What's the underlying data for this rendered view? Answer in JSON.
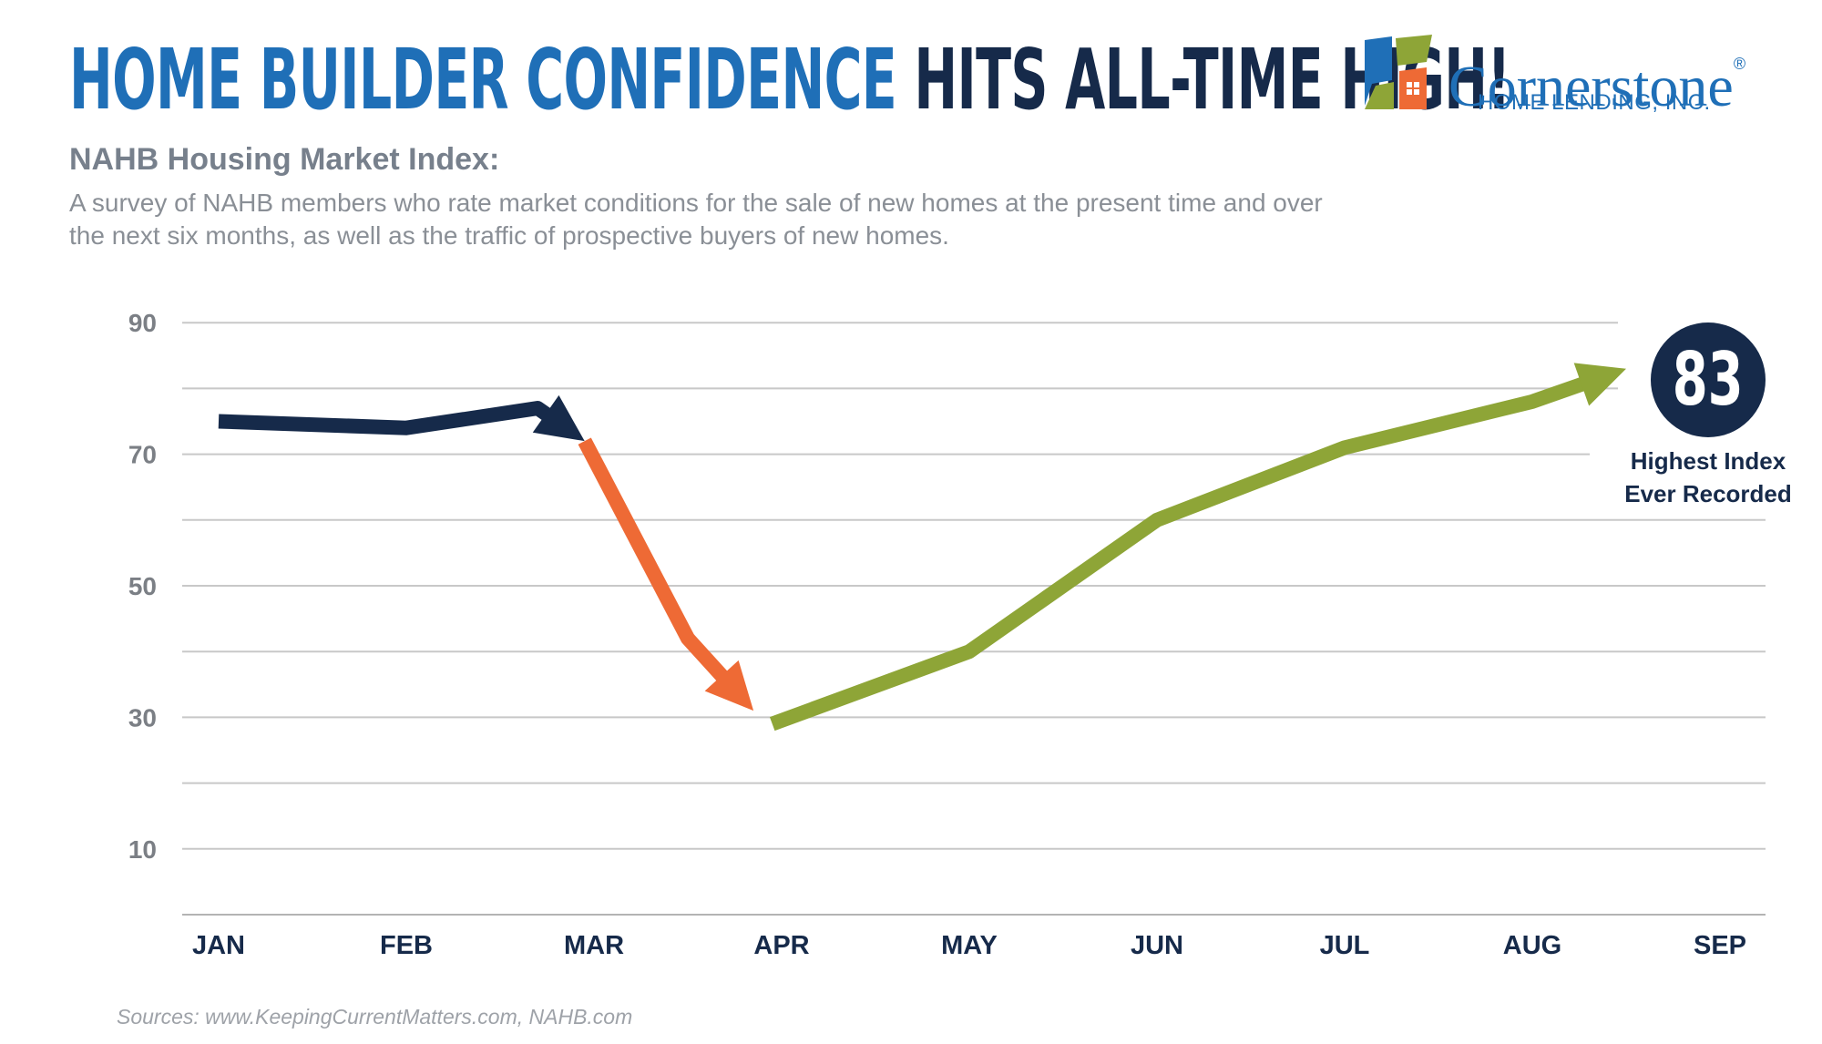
{
  "header": {
    "title_part1": "HOME BUILDER CONFIDENCE",
    "title_part2": "HITS ALL-TIME HIGH!",
    "subtitle": "NAHB Housing Market Index:",
    "description": "A survey of NAHB members who rate market conditions for the sale of new homes at the present time and over the next six months, as well as the traffic of prospective buyers of new homes."
  },
  "logo": {
    "name": "Cornerstone",
    "registered": "®",
    "tagline": "HOME LENDING, INC.",
    "icon": "house-window-logo-icon"
  },
  "callout": {
    "value": "83",
    "caption_line1": "Highest Index",
    "caption_line2": "Ever Recorded"
  },
  "footer": {
    "source": "Sources: www.KeepingCurrentMatters.com, NAHB.com"
  },
  "colors": {
    "navy": "#162a4a",
    "blue": "#1f6fb7",
    "orange": "#ee6a35",
    "green": "#8ea537",
    "grid": "#c8c8c8",
    "axis_text": "#7b7f85"
  },
  "chart_data": {
    "type": "line",
    "title": "NAHB Housing Market Index",
    "categories": [
      "JAN",
      "FEB",
      "MAR",
      "APR",
      "MAY",
      "JUN",
      "JUL",
      "AUG",
      "SEP"
    ],
    "ylim": [
      0,
      90
    ],
    "y_ticks": [
      10,
      30,
      50,
      70,
      90
    ],
    "y_gridlines": [
      0,
      10,
      20,
      30,
      40,
      50,
      60,
      70,
      80,
      90
    ],
    "grid": true,
    "legend": "none",
    "series": [
      {
        "color": "#162a4a",
        "points": [
          [
            0,
            75
          ],
          [
            1,
            74
          ],
          [
            1.7,
            77
          ],
          [
            1.95,
            72
          ]
        ]
      },
      {
        "color": "#ee6a35",
        "points": [
          [
            1.95,
            72
          ],
          [
            2.5,
            42
          ],
          [
            2.85,
            31
          ]
        ]
      },
      {
        "color": "#8ea537",
        "points": [
          [
            2.95,
            29
          ],
          [
            4,
            40
          ],
          [
            5,
            60
          ],
          [
            6,
            71
          ],
          [
            7,
            78
          ],
          [
            7.5,
            83
          ]
        ]
      }
    ],
    "annotation": {
      "value": 83,
      "text": "Highest Index Ever Recorded"
    }
  }
}
